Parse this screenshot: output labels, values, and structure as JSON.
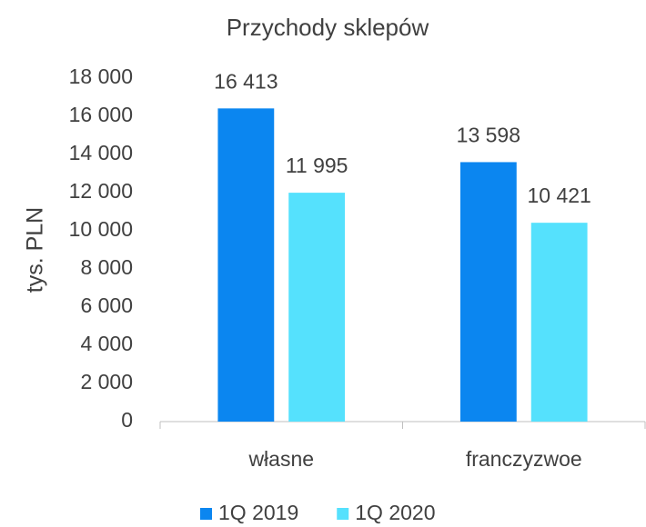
{
  "chart_data": {
    "type": "bar",
    "title": "Przychody sklepów",
    "y_label": "tys. PLN",
    "categories": [
      "własne",
      "franczyzwoe"
    ],
    "series": [
      {
        "name": "1Q 2019",
        "color": "#0b86f0",
        "values": [
          16413,
          13598
        ],
        "value_labels": [
          "16 413",
          "13 598"
        ]
      },
      {
        "name": "1Q 2020",
        "color": "#55e1fd",
        "values": [
          11995,
          10421
        ],
        "value_labels": [
          "11 995",
          "10 421"
        ]
      }
    ],
    "ylim": [
      0,
      18000
    ],
    "yticks": [
      0,
      {
        "value": 2000,
        "label": "2 000"
      },
      {
        "value": 4000,
        "label": "4 000"
      },
      {
        "value": 6000,
        "label": "6 000"
      },
      {
        "value": 8000,
        "label": "8 000"
      },
      {
        "value": 10000,
        "label": "10 000"
      },
      {
        "value": 12000,
        "label": "12 000"
      },
      {
        "value": 14000,
        "label": "14 000"
      },
      {
        "value": 16000,
        "label": "16 000"
      },
      {
        "value": 18000,
        "label": "18 000"
      }
    ],
    "grid": false,
    "legend": "bottom"
  }
}
